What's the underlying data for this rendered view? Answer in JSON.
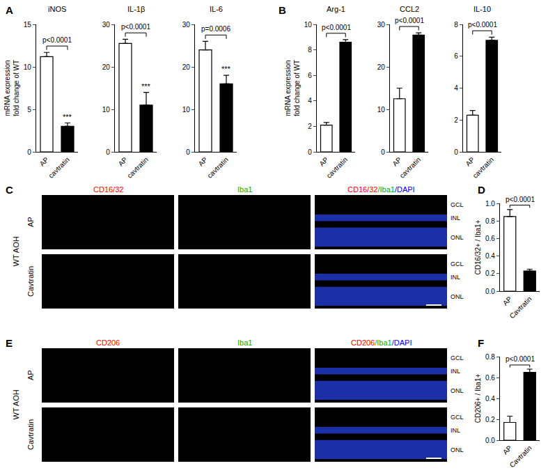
{
  "chart_data": [
    {
      "type": "bar",
      "panel": "A",
      "title": "iNOS",
      "ylabel": "mRNA expression\nfold change of WT",
      "categories": [
        "AP",
        "cavtratin"
      ],
      "values": [
        11.2,
        3.0
      ],
      "errors": [
        0.5,
        0.4
      ],
      "colors": [
        "#ffffff",
        "#000000"
      ],
      "ylim": [
        0,
        15
      ],
      "yticks": [
        0,
        5,
        10,
        15
      ],
      "grid": false,
      "significance": "p<0.0001",
      "star": {
        "category": "cavtratin",
        "text": "***"
      }
    },
    {
      "type": "bar",
      "panel": "A",
      "title": "IL-1β",
      "categories": [
        "AP",
        "cavtratin"
      ],
      "values": [
        25.5,
        11.0
      ],
      "errors": [
        1.0,
        3.0
      ],
      "colors": [
        "#ffffff",
        "#000000"
      ],
      "ylim": [
        0,
        30
      ],
      "yticks": [
        0,
        10,
        20,
        30
      ],
      "grid": false,
      "significance": "p<0.0001",
      "star": {
        "category": "cavtratin",
        "text": "***"
      }
    },
    {
      "type": "bar",
      "panel": "A",
      "title": "IL-6",
      "categories": [
        "AP",
        "cavtratin"
      ],
      "values": [
        24.0,
        16.0
      ],
      "errors": [
        2.0,
        2.0
      ],
      "colors": [
        "#ffffff",
        "#000000"
      ],
      "ylim": [
        0,
        30
      ],
      "yticks": [
        0,
        10,
        20,
        30
      ],
      "grid": false,
      "significance": "p=0.0006",
      "star": {
        "category": "cavtratin",
        "text": "***"
      }
    },
    {
      "type": "bar",
      "panel": "B",
      "title": "Arg-1",
      "ylabel": "mRNA expression\nfold change of WT",
      "categories": [
        "AP",
        "cavtratin"
      ],
      "values": [
        2.1,
        8.6
      ],
      "errors": [
        0.2,
        0.2
      ],
      "colors": [
        "#ffffff",
        "#000000"
      ],
      "ylim": [
        0,
        10
      ],
      "yticks": [
        0,
        2,
        4,
        6,
        8,
        10
      ],
      "grid": false,
      "significance": "p<0.0001"
    },
    {
      "type": "bar",
      "panel": "B",
      "title": "CCL2",
      "categories": [
        "AP",
        "cavtratin"
      ],
      "values": [
        12.5,
        27.5
      ],
      "errors": [
        2.5,
        0.5
      ],
      "colors": [
        "#ffffff",
        "#000000"
      ],
      "ylim": [
        0,
        30
      ],
      "yticks": [
        0,
        10,
        20,
        30
      ],
      "grid": false,
      "significance": "p<0.0001"
    },
    {
      "type": "bar",
      "panel": "B",
      "title": "IL-10",
      "categories": [
        "AP",
        "cavtratin"
      ],
      "values": [
        2.3,
        7.0
      ],
      "errors": [
        0.3,
        0.2
      ],
      "colors": [
        "#ffffff",
        "#000000"
      ],
      "ylim": [
        0,
        8
      ],
      "yticks": [
        0,
        2,
        4,
        6,
        8
      ],
      "grid": false,
      "significance": "p<0.0001"
    },
    {
      "type": "bar",
      "panel": "D",
      "ylabel": "CD16/32+ / Iba1+",
      "categories": [
        "AP",
        "Cavtratin"
      ],
      "values": [
        0.85,
        0.23
      ],
      "errors": [
        0.08,
        0.02
      ],
      "colors": [
        "#ffffff",
        "#000000"
      ],
      "ylim": [
        0,
        1
      ],
      "yticks": [
        {
          "value": 0,
          "label": "0.0"
        },
        0.2,
        0.4,
        0.6,
        0.8,
        {
          "value": 1,
          "label": "1.0"
        }
      ],
      "grid": false,
      "significance": "p<0.0001"
    },
    {
      "type": "bar",
      "panel": "F",
      "ylabel": "CD206+ / Iba1+",
      "categories": [
        "AP",
        "Cavtratin"
      ],
      "values": [
        0.17,
        0.65
      ],
      "errors": [
        0.06,
        0.03
      ],
      "colors": [
        "#ffffff",
        "#000000"
      ],
      "ylim": [
        0,
        0.8
      ],
      "yticks": [
        {
          "value": 0,
          "label": "0.0"
        },
        0.2,
        0.4,
        0.6,
        0.8
      ],
      "grid": false,
      "significance": "p<0.0001"
    }
  ],
  "image_panels": [
    {
      "panel": "C",
      "group": "WT AOH",
      "rows": [
        "AP",
        "Cavtratin"
      ],
      "layers": [
        "GCL",
        "INL",
        "ONL"
      ],
      "channels": [
        [
          {
            "text": "CD16/32",
            "color": "#ff0000"
          }
        ],
        [
          {
            "text": "Iba1",
            "color": "#00b000"
          }
        ],
        [
          {
            "text": "CD16/32",
            "color": "#ff0000"
          },
          {
            "text": "/Iba1",
            "color": "#00b000"
          },
          {
            "text": "/DAPI",
            "color": "#0000ff"
          }
        ]
      ]
    },
    {
      "panel": "E",
      "group": "WT AOH",
      "rows": [
        "AP",
        "Cavtratin"
      ],
      "layers": [
        "GCL",
        "INL",
        "ONL"
      ],
      "channels": [
        [
          {
            "text": "CD206",
            "color": "#ff0000"
          }
        ],
        [
          {
            "text": "Iba1",
            "color": "#00b000"
          }
        ],
        [
          {
            "text": "CD206",
            "color": "#ff0000"
          },
          {
            "text": "/Iba1",
            "color": "#00b000"
          },
          {
            "text": "/DAPI",
            "color": "#0000ff"
          }
        ]
      ]
    }
  ]
}
